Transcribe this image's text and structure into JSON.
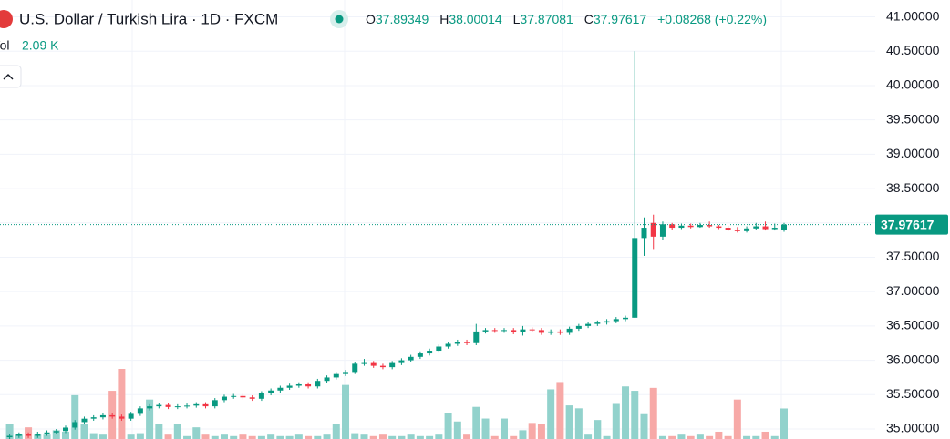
{
  "chart_data": {
    "type": "candlestick",
    "title": "U.S. Dollar / Turkish Lira · 1D · FXCM",
    "ohlc_header": {
      "o_key": "O",
      "o": "37.89349",
      "h_key": "H",
      "h": "38.00014",
      "l_key": "L",
      "l": "37.87081",
      "c_key": "C",
      "c": "37.97617",
      "change": "+0.08268 (+0.22%)"
    },
    "volume_header": {
      "key": "Vol",
      "value": "2.09 K"
    },
    "up_color": "#089981",
    "down_color": "#f23645",
    "volume_up_color": "#92d2cc",
    "volume_down_color": "#f7a9a7",
    "ylim": [
      34.854,
      41.246
    ],
    "yticks": [
      {
        "value": 35,
        "label": "35.00000"
      },
      {
        "value": 35.5,
        "label": "35.50000"
      },
      {
        "value": 36,
        "label": "36.00000"
      },
      {
        "value": 36.5,
        "label": "36.50000"
      },
      {
        "value": 37,
        "label": "37.00000"
      },
      {
        "value": 37.5,
        "label": "37.50000"
      },
      {
        "value": 38,
        "label": "38.00000"
      },
      {
        "value": 38.5,
        "label": "38.50000"
      },
      {
        "value": 39,
        "label": "39.00000"
      },
      {
        "value": 39.5,
        "label": "39.50000"
      },
      {
        "value": 40,
        "label": "40.00000"
      },
      {
        "value": 40.5,
        "label": "40.50000"
      },
      {
        "value": 41,
        "label": "41.00000"
      }
    ],
    "last_price": 37.97617,
    "grid": true,
    "open": [
      34.88,
      34.9,
      34.92,
      34.9,
      34.93,
      34.95,
      34.97,
      35.02,
      35.1,
      35.15,
      35.17,
      35.2,
      35.18,
      35.15,
      35.22,
      35.3,
      35.33,
      35.35,
      35.32,
      35.33,
      35.34,
      35.36,
      35.33,
      35.42,
      35.47,
      35.48,
      35.46,
      35.44,
      35.52,
      35.56,
      35.6,
      35.63,
      35.65,
      35.62,
      35.7,
      35.75,
      35.8,
      35.83,
      35.95,
      35.96,
      35.92,
      35.9,
      35.96,
      36.0,
      36.05,
      36.1,
      36.14,
      36.2,
      36.24,
      36.27,
      36.25,
      36.42,
      36.44,
      36.43,
      36.44,
      36.41,
      36.45,
      36.44,
      36.4,
      36.42,
      36.4,
      36.46,
      36.5,
      36.53,
      36.55,
      36.57,
      36.6,
      36.62,
      37.78,
      38.0,
      37.8,
      37.98,
      37.93,
      37.96,
      37.94,
      37.97,
      37.95,
      37.93,
      37.9,
      37.88,
      37.92,
      37.95,
      37.91,
      37.89349
    ],
    "high": [
      34.93,
      34.95,
      34.95,
      34.96,
      34.98,
      35.0,
      35.05,
      35.13,
      35.18,
      35.2,
      35.23,
      35.23,
      35.21,
      35.25,
      35.33,
      35.36,
      35.38,
      35.38,
      35.36,
      35.37,
      35.39,
      35.39,
      35.45,
      35.5,
      35.51,
      35.51,
      35.49,
      35.55,
      35.59,
      35.63,
      35.66,
      35.68,
      35.68,
      35.73,
      35.78,
      35.83,
      35.86,
      35.98,
      36.02,
      35.99,
      35.95,
      35.99,
      36.03,
      36.08,
      36.13,
      36.17,
      36.23,
      36.27,
      36.3,
      36.3,
      36.53,
      36.47,
      36.47,
      36.47,
      36.47,
      36.5,
      36.48,
      36.47,
      36.45,
      36.45,
      36.49,
      36.53,
      36.56,
      36.58,
      36.6,
      36.63,
      36.65,
      40.5,
      38.08,
      38.12,
      38.02,
      38.0,
      37.99,
      37.99,
      38.0,
      38.02,
      37.97,
      37.96,
      37.94,
      37.95,
      38.0,
      38.02,
      37.99,
      38.00014
    ],
    "low": [
      34.85,
      34.87,
      34.87,
      34.87,
      34.9,
      34.92,
      34.94,
      34.99,
      35.07,
      35.12,
      35.14,
      35.15,
      35.12,
      35.12,
      35.19,
      35.27,
      35.3,
      35.29,
      35.29,
      35.3,
      35.31,
      35.3,
      35.3,
      35.39,
      35.44,
      35.43,
      35.41,
      35.41,
      35.49,
      35.53,
      35.57,
      35.6,
      35.59,
      35.59,
      35.67,
      35.72,
      35.77,
      35.8,
      35.92,
      35.89,
      35.87,
      35.87,
      35.93,
      35.97,
      36.02,
      36.07,
      36.11,
      36.17,
      36.21,
      36.22,
      36.22,
      36.39,
      36.4,
      36.4,
      36.38,
      36.36,
      36.41,
      36.37,
      36.37,
      36.37,
      36.37,
      36.43,
      36.47,
      36.5,
      36.52,
      36.54,
      36.57,
      36.62,
      37.52,
      37.62,
      37.75,
      37.9,
      37.91,
      37.92,
      37.93,
      37.93,
      37.91,
      37.88,
      37.86,
      37.86,
      37.9,
      37.89,
      37.89,
      37.87081
    ],
    "close": [
      34.9,
      34.92,
      34.9,
      34.93,
      34.95,
      34.97,
      35.02,
      35.1,
      35.15,
      35.17,
      35.2,
      35.18,
      35.15,
      35.22,
      35.3,
      35.33,
      35.35,
      35.32,
      35.33,
      35.34,
      35.36,
      35.33,
      35.42,
      35.47,
      35.48,
      35.46,
      35.44,
      35.52,
      35.56,
      35.6,
      35.63,
      35.65,
      35.62,
      35.7,
      35.75,
      35.8,
      35.83,
      35.95,
      35.96,
      35.92,
      35.9,
      35.96,
      36.0,
      36.05,
      36.1,
      36.14,
      36.2,
      36.24,
      36.27,
      36.25,
      36.42,
      36.44,
      36.43,
      36.44,
      36.41,
      36.45,
      36.44,
      36.4,
      36.42,
      36.4,
      36.46,
      36.5,
      36.53,
      36.55,
      36.57,
      36.6,
      36.62,
      37.78,
      37.93,
      37.8,
      37.98,
      37.93,
      37.96,
      37.94,
      37.97,
      37.95,
      37.93,
      37.9,
      37.88,
      37.92,
      37.95,
      37.91,
      37.93,
      37.97617
    ],
    "volume": [
      1.0,
      0.3,
      0.8,
      0.3,
      0.3,
      0.6,
      0.5,
      3.0,
      1.0,
      0.4,
      0.3,
      3.3,
      4.8,
      0.3,
      0.4,
      2.7,
      1.0,
      0.3,
      1.0,
      0.2,
      0.8,
      0.3,
      0.2,
      0.3,
      0.2,
      0.3,
      0.2,
      0.2,
      0.3,
      0.2,
      0.2,
      0.3,
      0.2,
      0.2,
      0.3,
      1.0,
      3.7,
      0.4,
      0.3,
      0.2,
      0.3,
      0.2,
      0.2,
      0.3,
      0.2,
      0.2,
      0.3,
      1.8,
      1.2,
      0.3,
      2.2,
      1.4,
      0.2,
      1.4,
      0.2,
      0.6,
      1.1,
      1.0,
      3.4,
      3.9,
      2.3,
      2.1,
      0.3,
      1.3,
      0.2,
      2.4,
      3.6,
      3.3,
      1.7,
      3.5,
      0.2,
      0.2,
      0.3,
      0.2,
      0.3,
      0.2,
      0.5,
      0.2,
      2.7,
      0.2,
      0.2,
      0.5,
      0.2,
      2.09
    ]
  }
}
